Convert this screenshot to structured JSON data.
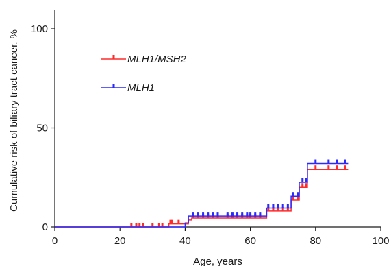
{
  "chart_data": {
    "type": "line",
    "step": true,
    "xlabel": "Age, years",
    "ylabel": "Cumulative risk of biliary tract cancer, %",
    "xlim": [
      0,
      100
    ],
    "ylim": [
      0,
      100
    ],
    "xticks": [
      0,
      20,
      40,
      60,
      80,
      100
    ],
    "yticks": [
      0,
      50,
      100
    ],
    "grid": false,
    "legend_placement": "top-left",
    "series": [
      {
        "name": "MLH1/MSH2",
        "color": "#ff2a2a",
        "steps": [
          [
            0,
            0
          ],
          [
            35,
            1.5
          ],
          [
            41,
            3.5
          ],
          [
            42,
            4.5
          ],
          [
            65,
            8
          ],
          [
            72.5,
            13.5
          ],
          [
            75,
            20
          ],
          [
            77.5,
            29
          ],
          [
            90,
            29
          ]
        ],
        "censored": [
          23.5,
          25,
          26,
          27,
          30,
          32,
          33,
          35.5,
          36,
          38,
          42.5,
          44,
          45.5,
          47,
          48.5,
          50,
          53,
          54.5,
          56,
          57.5,
          59,
          60,
          61.5,
          63,
          65.5,
          67,
          68.5,
          70,
          71.5,
          73,
          74.5,
          76,
          77,
          80,
          84,
          86.5,
          89
        ]
      },
      {
        "name": "MLH1",
        "color": "#2a2aff",
        "steps": [
          [
            0,
            0
          ],
          [
            40,
            2
          ],
          [
            41,
            5.5
          ],
          [
            65,
            9.5
          ],
          [
            72.5,
            15.5
          ],
          [
            75,
            22.5
          ],
          [
            77.5,
            32
          ],
          [
            90,
            32
          ]
        ],
        "censored": [
          42.5,
          44,
          45.5,
          47,
          48.5,
          50,
          53,
          54.5,
          56,
          57.5,
          59,
          60,
          61.5,
          63,
          65.5,
          67,
          68.5,
          70,
          71.5,
          73,
          74.5,
          76,
          77,
          80,
          84,
          86.5,
          89
        ]
      }
    ]
  }
}
